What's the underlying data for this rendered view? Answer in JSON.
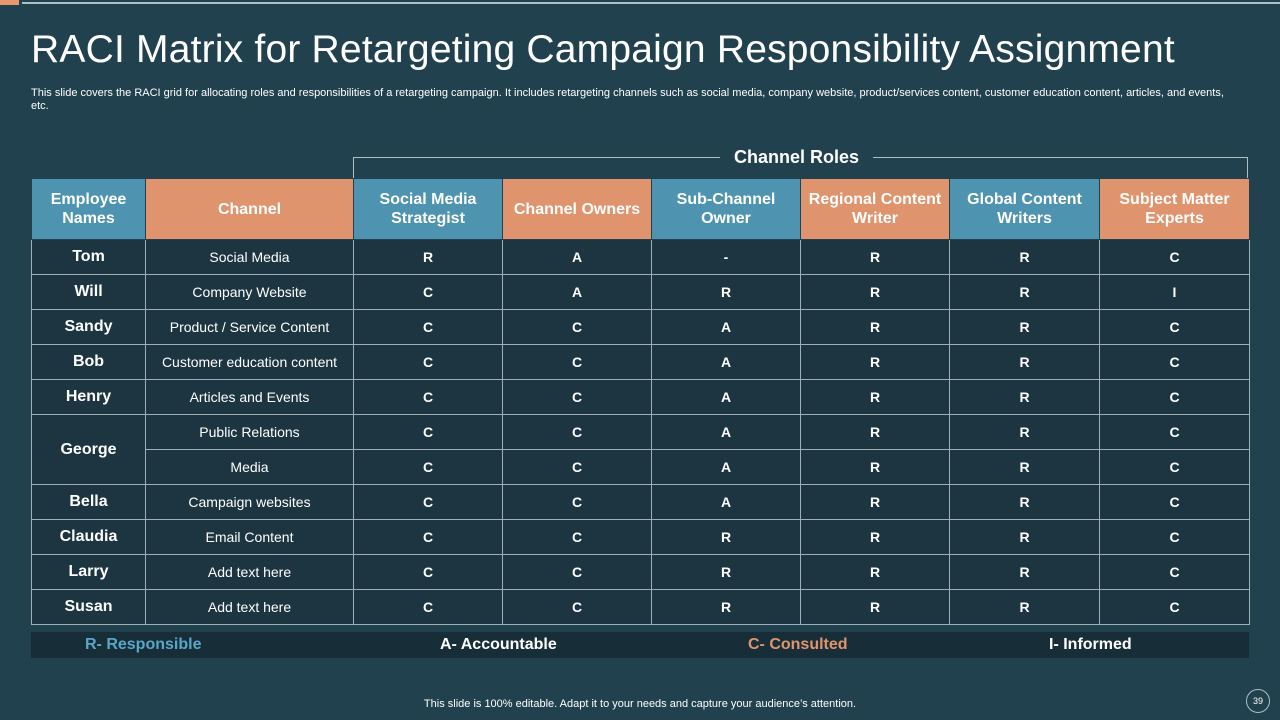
{
  "title": "RACI Matrix for Retargeting Campaign Responsibility Assignment",
  "subtitle": "This slide covers the RACI grid for allocating roles and responsibilities of a retargeting campaign. It includes retargeting channels such as social media, company website, product/services content, customer education content, articles, and events, etc.",
  "roles_label": "Channel Roles",
  "table": {
    "headers": [
      "Employee Names",
      "Channel",
      "Social Media Strategist",
      "Channel Owners",
      "Sub-Channel Owner",
      "Regional Content Writer",
      "Global Content Writers",
      "Subject Matter Experts"
    ],
    "rows": [
      {
        "name": "Tom",
        "name_rowspan": 1,
        "channel": "Social Media",
        "codes": [
          "R",
          "A",
          "-",
          "R",
          "R",
          "C"
        ]
      },
      {
        "name": "Will",
        "name_rowspan": 1,
        "channel": "Company Website",
        "codes": [
          "C",
          "A",
          "R",
          "R",
          "R",
          "I"
        ]
      },
      {
        "name": "Sandy",
        "name_rowspan": 1,
        "channel": "Product / Service Content",
        "codes": [
          "C",
          "C",
          "A",
          "R",
          "R",
          "C"
        ]
      },
      {
        "name": "Bob",
        "name_rowspan": 1,
        "channel": "Customer education content",
        "codes": [
          "C",
          "C",
          "A",
          "R",
          "R",
          "C"
        ]
      },
      {
        "name": "Henry",
        "name_rowspan": 1,
        "channel": "Articles and Events",
        "codes": [
          "C",
          "C",
          "A",
          "R",
          "R",
          "C"
        ]
      },
      {
        "name": "George",
        "name_rowspan": 2,
        "channel": "Public Relations",
        "codes": [
          "C",
          "C",
          "A",
          "R",
          "R",
          "C"
        ]
      },
      {
        "name": null,
        "name_rowspan": 0,
        "channel": "Media",
        "codes": [
          "C",
          "C",
          "A",
          "R",
          "R",
          "C"
        ]
      },
      {
        "name": "Bella",
        "name_rowspan": 1,
        "channel": "Campaign websites",
        "codes": [
          "C",
          "C",
          "A",
          "R",
          "R",
          "C"
        ]
      },
      {
        "name": "Claudia",
        "name_rowspan": 1,
        "channel": "Email Content",
        "codes": [
          "C",
          "C",
          "R",
          "R",
          "R",
          "C"
        ]
      },
      {
        "name": "Larry",
        "name_rowspan": 1,
        "channel": "Add text here",
        "codes": [
          "C",
          "C",
          "R",
          "R",
          "R",
          "C"
        ]
      },
      {
        "name": "Susan",
        "name_rowspan": 1,
        "channel": "Add text here",
        "codes": [
          "C",
          "C",
          "R",
          "R",
          "R",
          "C"
        ]
      }
    ]
  },
  "legend": {
    "responsible": "R- Responsible",
    "accountable": "A- Accountable",
    "consulted": "C- Consulted",
    "informed": "I- Informed"
  },
  "footer": "This slide is 100% editable. Adapt it to your needs and capture your audience’s attention.",
  "page_number": "39",
  "colors": {
    "background": "#21414f",
    "header_blue": "#4e93b0",
    "header_orange": "#e0946d",
    "cell": "#1c3541",
    "responsible": "#5aa6c9",
    "consulted": "#e0946d"
  }
}
